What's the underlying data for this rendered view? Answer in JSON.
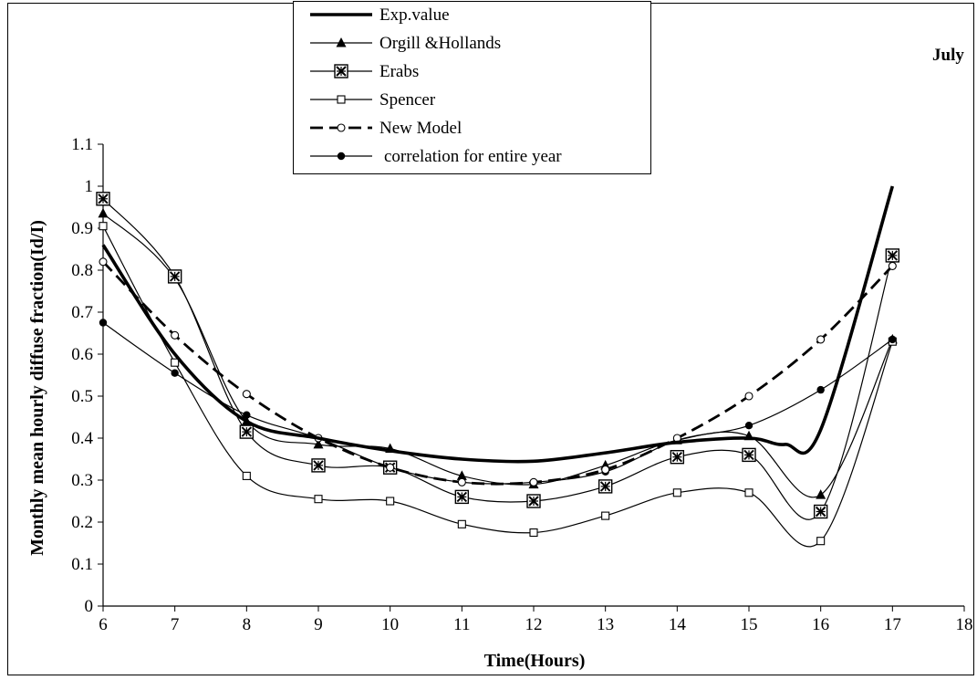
{
  "chart_data": {
    "type": "line",
    "title": "",
    "side_label": "July",
    "xlabel": "Time(Hours)",
    "ylabel": "Monthly mean hourly diffuse fraction(Id/I)",
    "xlim": [
      6,
      18
    ],
    "ylim": [
      0,
      1.1
    ],
    "x_ticks": [
      6,
      7,
      8,
      9,
      10,
      11,
      12,
      13,
      14,
      15,
      16,
      17,
      18
    ],
    "y_ticks": [
      0,
      0.1,
      0.2,
      0.3,
      0.4,
      0.5,
      0.6,
      0.7,
      0.8,
      0.9,
      1,
      1.1
    ],
    "y_tick_labels": [
      "0",
      "0.1",
      "0.2",
      "0.3",
      "0.4",
      "0.5",
      "0.6",
      "0.7",
      "0.8",
      "0.9",
      "1",
      "1.1"
    ],
    "grid": false,
    "legend_position": "top-center",
    "series": [
      {
        "name": "Exp.value",
        "style": "thick-solid",
        "marker": "none",
        "x": [
          6,
          7,
          8,
          9,
          10,
          11,
          12,
          13,
          14,
          15,
          15.5,
          16,
          17
        ],
        "y": [
          0.86,
          0.6,
          0.44,
          0.4,
          0.37,
          0.35,
          0.345,
          0.365,
          0.39,
          0.4,
          0.385,
          0.42,
          1.0
        ]
      },
      {
        "name": "Orgill &Hollands",
        "style": "thin-solid",
        "marker": "triangle",
        "x": [
          6,
          7,
          8,
          9,
          10,
          11,
          12,
          13,
          14,
          15,
          16,
          17
        ],
        "y": [
          0.935,
          0.78,
          0.44,
          0.385,
          0.375,
          0.31,
          0.29,
          0.335,
          0.395,
          0.405,
          0.265,
          0.635
        ]
      },
      {
        "name": "Erabs",
        "style": "thin-solid",
        "marker": "box-x",
        "x": [
          6,
          7,
          8,
          9,
          10,
          11,
          12,
          13,
          14,
          15,
          16,
          17
        ],
        "y": [
          0.97,
          0.785,
          0.415,
          0.335,
          0.33,
          0.26,
          0.25,
          0.285,
          0.355,
          0.36,
          0.225,
          0.835
        ]
      },
      {
        "name": "Spencer",
        "style": "thin-solid",
        "marker": "open-square",
        "x": [
          6,
          7,
          8,
          9,
          10,
          11,
          12,
          13,
          14,
          15,
          16,
          17
        ],
        "y": [
          0.905,
          0.58,
          0.31,
          0.255,
          0.25,
          0.195,
          0.175,
          0.215,
          0.27,
          0.27,
          0.155,
          0.63
        ]
      },
      {
        "name": "New Model",
        "style": "dashed",
        "marker": "open-circle",
        "x": [
          6,
          7,
          8,
          9,
          10,
          11,
          12,
          13,
          14,
          15,
          16,
          17
        ],
        "y": [
          0.82,
          0.645,
          0.505,
          0.4,
          0.33,
          0.295,
          0.295,
          0.325,
          0.4,
          0.5,
          0.635,
          0.81
        ]
      },
      {
        "name": "correlation for entire year",
        "style": "thin-solid",
        "marker": "filled-circle",
        "x": [
          6,
          7,
          8,
          9,
          10,
          11,
          12,
          13,
          14,
          15,
          16,
          17
        ],
        "y": [
          0.675,
          0.555,
          0.455,
          0.4,
          0.33,
          0.295,
          0.295,
          0.32,
          0.395,
          0.43,
          0.515,
          0.635
        ]
      }
    ]
  }
}
